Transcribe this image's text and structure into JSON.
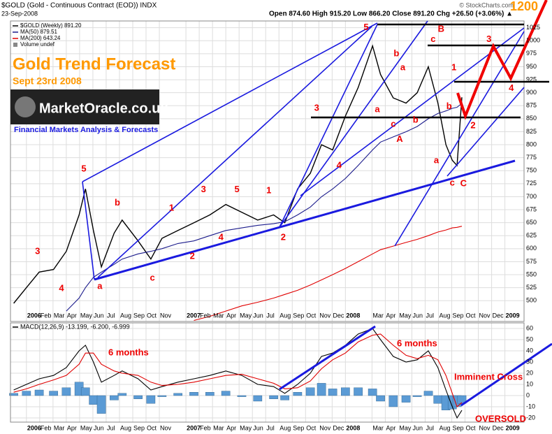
{
  "header": {
    "symbol": "$GOLD (Gold - Continuous Contract (EOD)) INDX",
    "date": "23-Sep-2008",
    "quote": "Open 874.60 High 915.20 Low 866.20 Close 891.20 Chg +26.50 (+3.06%) ▲",
    "source": "© StockCharts.com"
  },
  "branding": {
    "title": "Gold Trend Forecast",
    "subtitle": "Sept 23rd 2008",
    "logo": "MarketOracle.co.uk",
    "tagline": "Financial Markets Analysis & Forecasts"
  },
  "notes": [
    "6 months",
    "6 months",
    "Imminent Cross",
    "OVERSOLD",
    "1200"
  ],
  "chart_data": [
    {
      "type": "line",
      "xlim": [
        2005.9,
        2009.12
      ],
      "ylim": [
        460,
        1038
      ],
      "yticks": [
        500,
        525,
        550,
        575,
        600,
        625,
        650,
        675,
        700,
        725,
        750,
        775,
        800,
        825,
        850,
        875,
        900,
        925,
        950,
        975,
        1000,
        1025
      ],
      "xticks": [
        2006,
        {
          "value": 2006.0833,
          "label": "Feb"
        },
        {
          "value": 2006.1667,
          "label": "Mar"
        },
        {
          "value": 2006.25,
          "label": "Apr"
        },
        {
          "value": 2006.3333,
          "label": "May"
        },
        {
          "value": 2006.4167,
          "label": "Jun"
        },
        {
          "value": 2006.5,
          "label": "Jul"
        },
        {
          "value": 2006.5833,
          "label": "Aug"
        },
        {
          "value": 2006.6667,
          "label": "Sep"
        },
        {
          "value": 2006.75,
          "label": "Oct"
        },
        {
          "value": 2006.8333,
          "label": "Nov"
        },
        2007,
        {
          "value": 2007.0833,
          "label": "Feb"
        },
        {
          "value": 2007.1667,
          "label": "Mar"
        },
        {
          "value": 2007.25,
          "label": "Apr"
        },
        {
          "value": 2007.3333,
          "label": "May"
        },
        {
          "value": 2007.4167,
          "label": "Jun"
        },
        {
          "value": 2007.5,
          "label": "Jul"
        },
        {
          "value": 2007.5833,
          "label": "Aug"
        },
        {
          "value": 2007.6667,
          "label": "Sep"
        },
        {
          "value": 2007.75,
          "label": "Oct"
        },
        {
          "value": 2007.8333,
          "label": "Nov"
        },
        {
          "value": 2007.9167,
          "label": "Dec"
        },
        2008,
        {
          "value": 2008.1667,
          "label": "Mar"
        },
        {
          "value": 2008.25,
          "label": "Apr"
        },
        {
          "value": 2008.3333,
          "label": "May"
        },
        {
          "value": 2008.4167,
          "label": "Jun"
        },
        {
          "value": 2008.5,
          "label": "Jul"
        },
        {
          "value": 2008.5833,
          "label": "Aug"
        },
        {
          "value": 2008.6667,
          "label": "Sep"
        },
        {
          "value": 2008.75,
          "label": "Oct"
        },
        {
          "value": 2008.8333,
          "label": "Nov"
        },
        {
          "value": 2008.9167,
          "label": "Dec"
        },
        2009
      ],
      "grid": true,
      "x": [
        2005.92,
        2006.0,
        2006.08,
        2006.17,
        2006.25,
        2006.33,
        2006.37,
        2006.42,
        2006.47,
        2006.55,
        2006.6,
        2006.7,
        2006.78,
        2006.85,
        2006.95,
        2007.05,
        2007.15,
        2007.25,
        2007.35,
        2007.45,
        2007.55,
        2007.62,
        2007.7,
        2007.78,
        2007.85,
        2007.92,
        2008.0,
        2008.08,
        2008.17,
        2008.22,
        2008.3,
        2008.38,
        2008.45,
        2008.52,
        2008.58,
        2008.63,
        2008.67,
        2008.7,
        2008.73
      ],
      "series": [
        {
          "name": "$GOLD (Weekly) 891.20",
          "color": "#000000",
          "values": [
            495,
            525,
            555,
            560,
            595,
            665,
            715,
            635,
            565,
            630,
            655,
            615,
            580,
            620,
            635,
            650,
            665,
            685,
            670,
            655,
            665,
            650,
            715,
            745,
            800,
            790,
            855,
            910,
            990,
            935,
            890,
            880,
            900,
            950,
            880,
            800,
            770,
            760,
            891.2
          ]
        },
        {
          "name": "MA(50) 879.51",
          "color": "#1c1c8c",
          "values": [
            null,
            null,
            null,
            null,
            480,
            505,
            525,
            545,
            555,
            570,
            580,
            590,
            595,
            600,
            610,
            615,
            625,
            635,
            640,
            645,
            648,
            652,
            665,
            680,
            700,
            715,
            735,
            760,
            790,
            805,
            815,
            825,
            835,
            850,
            860,
            865,
            870,
            872,
            879.51
          ]
        },
        {
          "name": "MA(200) 643.24",
          "color": "#e00000",
          "values": [
            null,
            null,
            null,
            null,
            null,
            null,
            null,
            null,
            null,
            null,
            null,
            null,
            null,
            null,
            null,
            462,
            470,
            480,
            490,
            497,
            505,
            512,
            520,
            530,
            540,
            550,
            562,
            575,
            590,
            598,
            605,
            612,
            618,
            625,
            632,
            636,
            640,
            641,
            643.24
          ]
        }
      ],
      "legend_extra": "Volume undef",
      "wave_labels": [
        {
          "text": "3",
          "x": 2006.07,
          "y": 594
        },
        {
          "text": "4",
          "x": 2006.22,
          "y": 523
        },
        {
          "text": "5",
          "x": 2006.36,
          "y": 753
        },
        {
          "text": "a",
          "x": 2006.46,
          "y": 527
        },
        {
          "text": "b",
          "x": 2006.57,
          "y": 688
        },
        {
          "text": "c",
          "x": 2006.79,
          "y": 543
        },
        {
          "text": "1",
          "x": 2006.91,
          "y": 678
        },
        {
          "text": "2",
          "x": 2007.04,
          "y": 585
        },
        {
          "text": "3",
          "x": 2007.11,
          "y": 713
        },
        {
          "text": "4",
          "x": 2007.22,
          "y": 621
        },
        {
          "text": "5",
          "x": 2007.32,
          "y": 713
        },
        {
          "text": "1",
          "x": 2007.52,
          "y": 711
        },
        {
          "text": "2",
          "x": 2007.61,
          "y": 621
        },
        {
          "text": "3",
          "x": 2007.82,
          "y": 870
        },
        {
          "text": "4",
          "x": 2007.96,
          "y": 760
        },
        {
          "text": "5",
          "x": 2008.13,
          "y": 1025
        },
        {
          "text": "a",
          "x": 2008.2,
          "y": 867
        },
        {
          "text": "b",
          "x": 2008.32,
          "y": 975
        },
        {
          "text": "a",
          "x": 2008.36,
          "y": 948
        },
        {
          "text": "c",
          "x": 2008.3,
          "y": 839
        },
        {
          "text": "b",
          "x": 2008.44,
          "y": 847
        },
        {
          "text": "A",
          "x": 2008.34,
          "y": 810
        },
        {
          "text": "c",
          "x": 2008.55,
          "y": 1002
        },
        {
          "text": "B",
          "x": 2008.6,
          "y": 1022
        },
        {
          "text": "1",
          "x": 2008.68,
          "y": 948
        },
        {
          "text": "b",
          "x": 2008.65,
          "y": 873
        },
        {
          "text": "a",
          "x": 2008.57,
          "y": 769
        },
        {
          "text": "c",
          "x": 2008.67,
          "y": 726
        },
        {
          "text": "C",
          "x": 2008.74,
          "y": 725
        },
        {
          "text": "3",
          "x": 2008.9,
          "y": 1002
        },
        {
          "text": "4",
          "x": 2009.04,
          "y": 908
        },
        {
          "text": "2",
          "x": 2008.8,
          "y": 836
        }
      ]
    },
    {
      "type": "line",
      "legend_text": "MACD(12,26,9) -13.199, -6.200, -6.999",
      "xlim": [
        2005.9,
        2009.12
      ],
      "ylim": [
        -23.75,
        65
      ],
      "yticks": [
        -20,
        -10,
        0,
        10,
        20,
        30,
        40,
        50,
        60
      ],
      "xticks": [
        2006,
        {
          "value": 2006.0833,
          "label": "Feb"
        },
        {
          "value": 2006.1667,
          "label": "Mar"
        },
        {
          "value": 2006.25,
          "label": "Apr"
        },
        {
          "value": 2006.3333,
          "label": "May"
        },
        {
          "value": 2006.4167,
          "label": "Jun"
        },
        {
          "value": 2006.5,
          "label": "Jul"
        },
        {
          "value": 2006.5833,
          "label": "Aug"
        },
        {
          "value": 2006.6667,
          "label": "Sep"
        },
        {
          "value": 2006.75,
          "label": "Oct"
        },
        {
          "value": 2006.8333,
          "label": "Nov"
        },
        2007,
        {
          "value": 2007.0833,
          "label": "Feb"
        },
        {
          "value": 2007.1667,
          "label": "Mar"
        },
        {
          "value": 2007.25,
          "label": "Apr"
        },
        {
          "value": 2007.3333,
          "label": "May"
        },
        {
          "value": 2007.4167,
          "label": "Jun"
        },
        {
          "value": 2007.5,
          "label": "Jul"
        },
        {
          "value": 2007.5833,
          "label": "Aug"
        },
        {
          "value": 2007.6667,
          "label": "Sep"
        },
        {
          "value": 2007.75,
          "label": "Oct"
        },
        {
          "value": 2007.8333,
          "label": "Nov"
        },
        {
          "value": 2007.9167,
          "label": "Dec"
        },
        2008,
        {
          "value": 2008.1667,
          "label": "Mar"
        },
        {
          "value": 2008.25,
          "label": "Apr"
        },
        {
          "value": 2008.3333,
          "label": "May"
        },
        {
          "value": 2008.4167,
          "label": "Jun"
        },
        {
          "value": 2008.5,
          "label": "Jul"
        },
        {
          "value": 2008.5833,
          "label": "Aug"
        },
        {
          "value": 2008.6667,
          "label": "Sep"
        },
        {
          "value": 2008.75,
          "label": "Oct"
        },
        {
          "value": 2008.8333,
          "label": "Nov"
        },
        {
          "value": 2008.9167,
          "label": "Dec"
        },
        2009
      ],
      "grid": true,
      "x": [
        2005.92,
        2006.0,
        2006.08,
        2006.17,
        2006.25,
        2006.33,
        2006.37,
        2006.42,
        2006.47,
        2006.55,
        2006.6,
        2006.7,
        2006.78,
        2006.85,
        2006.95,
        2007.05,
        2007.15,
        2007.25,
        2007.35,
        2007.45,
        2007.55,
        2007.62,
        2007.7,
        2007.78,
        2007.85,
        2007.92,
        2008.0,
        2008.08,
        2008.17,
        2008.22,
        2008.3,
        2008.38,
        2008.45,
        2008.52,
        2008.58,
        2008.63,
        2008.67,
        2008.7,
        2008.73
      ],
      "series": [
        {
          "name": "Histogram",
          "style": "bar",
          "color": "#5b9bd5",
          "values": [
            2,
            4,
            5,
            4,
            7,
            12,
            7,
            -8,
            -16,
            -4,
            2,
            -3,
            -7,
            -1,
            2,
            3,
            3,
            4,
            -1,
            -5,
            -3,
            -4,
            3,
            7,
            11,
            6,
            7,
            7,
            6,
            -5,
            -10,
            -6,
            -1,
            4,
            -7,
            -13,
            -12,
            -10,
            -6.999
          ]
        },
        {
          "name": "MACD",
          "style": "line",
          "color": "#000000",
          "values": [
            5,
            10,
            15,
            18,
            25,
            40,
            45,
            30,
            12,
            18,
            22,
            15,
            5,
            8,
            12,
            15,
            18,
            22,
            18,
            10,
            8,
            2,
            10,
            20,
            35,
            38,
            45,
            55,
            60,
            50,
            35,
            30,
            32,
            40,
            25,
            5,
            -10,
            -20,
            -13.199
          ]
        },
        {
          "name": "Signal",
          "style": "line",
          "color": "#e00000",
          "values": [
            3,
            6,
            10,
            14,
            18,
            28,
            38,
            38,
            28,
            22,
            20,
            18,
            12,
            9,
            10,
            12,
            15,
            18,
            19,
            15,
            11,
            6,
            7,
            13,
            24,
            32,
            38,
            48,
            54,
            55,
            45,
            36,
            33,
            36,
            32,
            18,
            2,
            -10,
            -6.2
          ]
        }
      ]
    }
  ]
}
